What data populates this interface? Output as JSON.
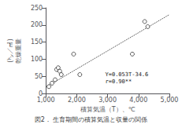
{
  "chart_data": {
    "type": "scatter",
    "xlabel": "積算気温（T）、℃",
    "ylabel": "(㌧／㎡)\n乾燥重量",
    "caption": "図2． 生育期間の積算気温と収量の関係",
    "annotations": [
      "Y=0.053T-34.6\nr=0.90**"
    ],
    "xlim": [
      1000,
      5000
    ],
    "ylim": [
      0,
      250
    ],
    "xticks": [
      {
        "value": 1000,
        "label": "1,000"
      },
      {
        "value": 2000,
        "label": "2,000"
      },
      {
        "value": 3000,
        "label": "3,000"
      },
      {
        "value": 4000,
        "label": "4,000"
      },
      {
        "value": 5000,
        "label": "5,000"
      }
    ],
    "yticks": [
      0,
      50,
      100,
      150,
      200,
      250
    ],
    "grid": false,
    "series": [
      {
        "type": "scatter",
        "marker": "open circle",
        "color": "#333333",
        "x": [
          1100,
          1200,
          1300,
          1350,
          1400,
          1450,
          1500,
          1900,
          2100,
          3800,
          4200,
          4300
        ],
        "values": [
          20,
          30,
          40,
          70,
          75,
          65,
          55,
          115,
          55,
          115,
          210,
          195
        ]
      },
      {
        "type": "line",
        "line_style": "dotted",
        "color": "#333333",
        "x": [
          1000,
          5000
        ],
        "values": [
          18.4,
          230.4
        ]
      }
    ]
  }
}
